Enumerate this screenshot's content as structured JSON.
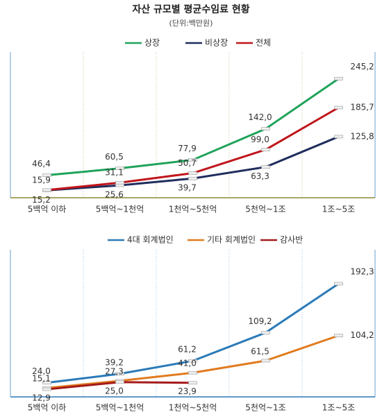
{
  "chart_data": [
    {
      "type": "line",
      "title": "자산 규모별 평균수임료 현황",
      "subtitle": "(단위:백만원)",
      "categories": [
        "5백억 이하",
        "5백억~1천억",
        "1천억~5천억",
        "5천억~1조",
        "1조~5조"
      ],
      "ylim": [
        0,
        300
      ],
      "series": [
        {
          "name": "상장",
          "color": "#1fa35a",
          "values": [
            46.4,
            60.5,
            77.9,
            142.0,
            245.2
          ],
          "value_labels": [
            "46,4",
            "60,5",
            "77,9",
            "142,0",
            "245,2"
          ]
        },
        {
          "name": "비상장",
          "color": "#1f2d5c",
          "values": [
            15.2,
            25.6,
            39.7,
            63.3,
            125.8
          ],
          "value_labels": [
            "15,2",
            "25,6",
            "39,7",
            "63,3",
            "125,8"
          ]
        },
        {
          "name": "전체",
          "color": "#c0151b",
          "values": [
            15.9,
            31.1,
            50.7,
            99.0,
            185.7
          ],
          "value_labels": [
            "15,9",
            "31,1",
            "50,7",
            "99,0",
            "185,7"
          ]
        }
      ]
    },
    {
      "type": "line",
      "categories": [
        "5백억 이하",
        "5백억~1천억",
        "1천억~5천억",
        "5천억~1조",
        "1조~5조"
      ],
      "ylim": [
        0,
        250
      ],
      "series": [
        {
          "name": "4대 회계법인",
          "color": "#2a7ab8",
          "values": [
            24.0,
            39.2,
            61.2,
            109.2,
            192.3
          ],
          "value_labels": [
            "24,0",
            "39,2",
            "61,2",
            "109,2",
            "192,3"
          ]
        },
        {
          "name": "기타 회계법인",
          "color": "#e07b1f",
          "values": [
            15.1,
            27.3,
            41.0,
            61.5,
            104.2
          ],
          "value_labels": [
            "15,1",
            "27,3",
            "41,0",
            "61,5",
            "104,2"
          ]
        },
        {
          "name": "감사반",
          "color": "#a51a1a",
          "values": [
            12.9,
            25.0,
            23.9,
            null,
            null
          ],
          "value_labels": [
            "12,9",
            "25,0",
            "23,9",
            null,
            null
          ]
        }
      ]
    }
  ]
}
